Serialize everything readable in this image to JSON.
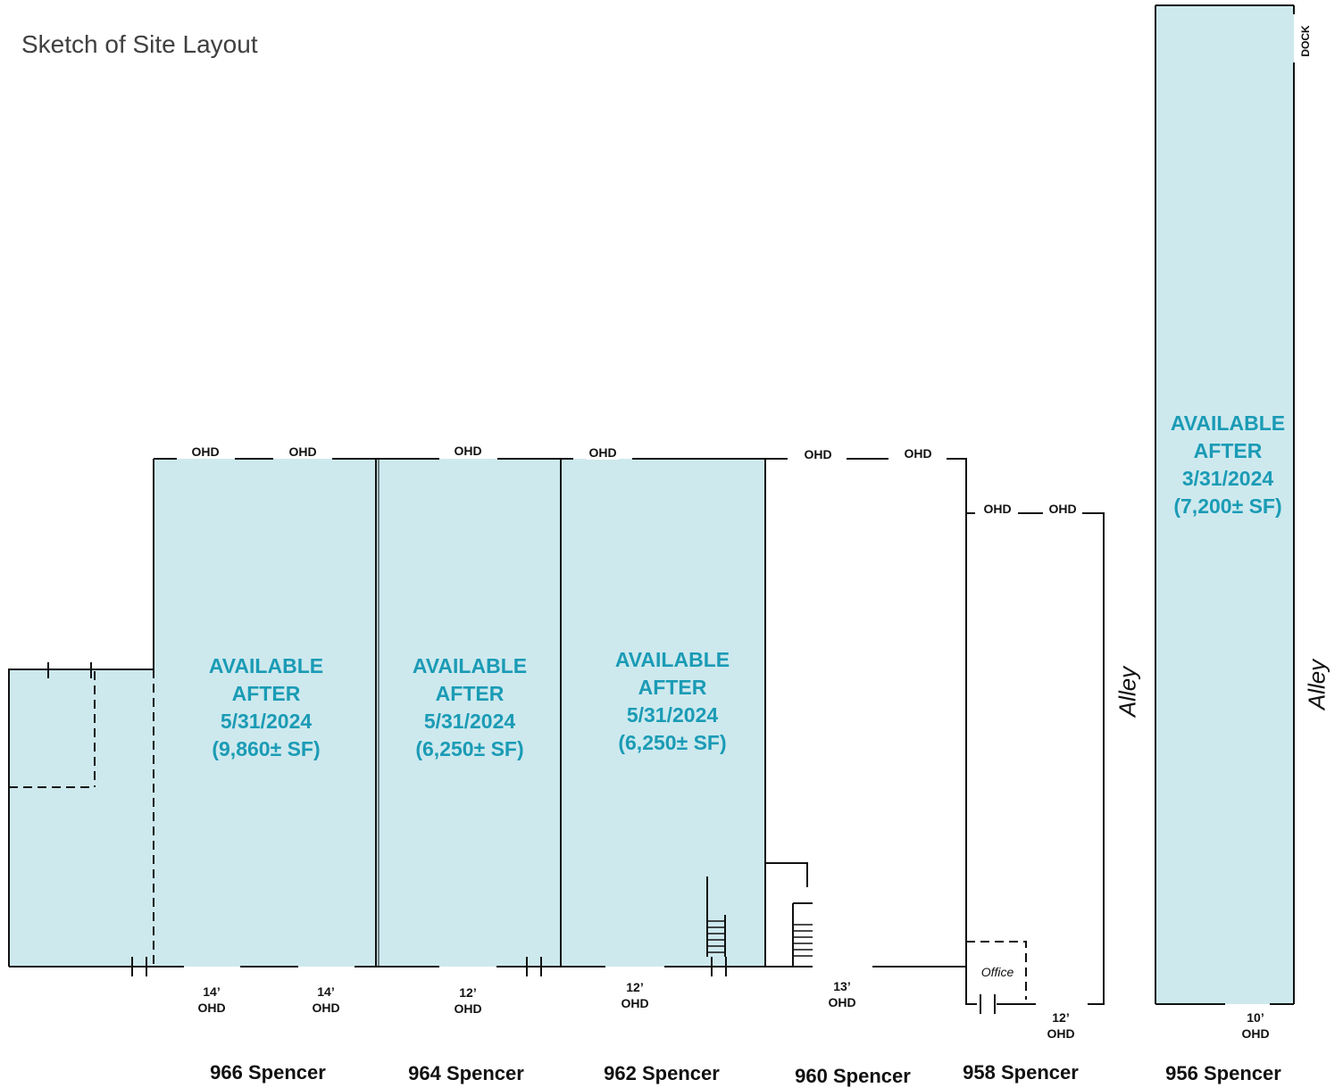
{
  "title": "Sketch of Site Layout",
  "colors": {
    "available_fill": "#cde9ee",
    "available_text": "#1b9bb5",
    "wall": "#111111"
  },
  "units": [
    {
      "address": "966 Spencer",
      "availability": [
        "AVAILABLE",
        "AFTER",
        "5/31/2024",
        "(9,860± SF)"
      ]
    },
    {
      "address": "964 Spencer",
      "availability": [
        "AVAILABLE",
        "AFTER",
        "5/31/2024",
        "(6,250± SF)"
      ]
    },
    {
      "address": "962 Spencer",
      "availability": [
        "AVAILABLE",
        "AFTER",
        "5/31/2024",
        "(6,250± SF)"
      ]
    },
    {
      "address": "960 Spencer"
    },
    {
      "address": "958 Spencer",
      "room": "Office"
    },
    {
      "address": "956 Spencer",
      "availability": [
        "AVAILABLE",
        "AFTER",
        "3/31/2024",
        "(7,200± SF)"
      ],
      "dock": "DOCK"
    }
  ],
  "top_doors": [
    "OHD",
    "OHD",
    "OHD",
    "OHD",
    "OHD",
    "OHD",
    "OHD",
    "OHD"
  ],
  "bottom_doors": [
    [
      "14’",
      "OHD"
    ],
    [
      "14’",
      "OHD"
    ],
    [
      "12’",
      "OHD"
    ],
    [
      "12’",
      "OHD"
    ],
    [
      "13’",
      "OHD"
    ],
    [
      "12’",
      "OHD"
    ],
    [
      "10’",
      "OHD"
    ]
  ],
  "alleys": [
    "Alley",
    "Alley"
  ]
}
